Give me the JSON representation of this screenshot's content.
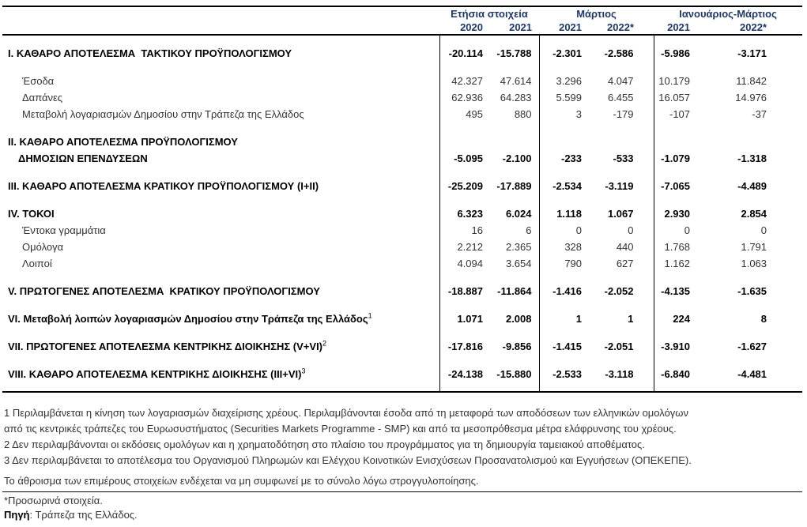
{
  "table": {
    "col_groups": [
      {
        "label": "Ετήσια στοιχεία",
        "years": [
          "2020",
          "2021"
        ]
      },
      {
        "label": "Μάρτιος",
        "years": [
          "2021",
          "2022*"
        ]
      },
      {
        "label": "Ιανουάριος-Μάρτιος",
        "years": [
          "2021",
          "2022*"
        ]
      }
    ],
    "rows": [
      {
        "kind": "section",
        "label": "I. ΚΑΘΑΡΟ ΑΠΟΤΕΛΕΣΜΑ  ΤΑΚΤΙΚΟΥ ΠΡΟΫΠΟΛΟΓΙΣΜΟΥ",
        "values": [
          "-20.114",
          "-15.788",
          "-2.301",
          "-2.586",
          "-5.986",
          "-3.171"
        ]
      },
      {
        "kind": "sub",
        "gap_before": true,
        "label": "Έσοδα",
        "values": [
          "42.327",
          "47.614",
          "3.296",
          "4.047",
          "10.179",
          "11.842"
        ]
      },
      {
        "kind": "sub",
        "label": "Δαπάνες",
        "values": [
          "62.936",
          "64.283",
          "5.599",
          "6.455",
          "16.057",
          "14.976"
        ]
      },
      {
        "kind": "sub",
        "label": "Μεταβολή λογαριασμών Δημοσίου στην Τράπεζα της Ελλάδος",
        "values": [
          "495",
          "880",
          "3",
          "-179",
          "-107",
          "-37"
        ]
      },
      {
        "kind": "section2",
        "gap_before": true,
        "label": "II. ΚΑΘΑΡΟ ΑΠΟΤΕΛΕΣΜΑ ΠΡΟΫΠΟΛΟΓΙΣΜΟΥ",
        "label2": "ΔΗΜΟΣΙΩΝ ΕΠΕΝΔΥΣΕΩΝ",
        "values": [
          "-5.095",
          "-2.100",
          "-233",
          "-533",
          "-1.079",
          "-1.318"
        ]
      },
      {
        "kind": "section",
        "gap_before": true,
        "label": "III. ΚΑΘΑΡΟ ΑΠΟΤΕΛΕΣΜΑ ΚΡΑΤΙΚΟΥ ΠΡΟΫΠΟΛΟΓΙΣΜΟΥ (I+II)",
        "values": [
          "-25.209",
          "-17.889",
          "-2.534",
          "-3.119",
          "-7.065",
          "-4.489"
        ]
      },
      {
        "kind": "section",
        "gap_before": true,
        "label": "IV. ΤΟΚΟΙ",
        "values": [
          "6.323",
          "6.024",
          "1.118",
          "1.067",
          "2.930",
          "2.854"
        ]
      },
      {
        "kind": "sub",
        "label": "Έντοκα γραμμάτια",
        "values": [
          "16",
          "6",
          "0",
          "0",
          "0",
          "0"
        ]
      },
      {
        "kind": "sub",
        "label": "Ομόλογα",
        "values": [
          "2.212",
          "2.365",
          "328",
          "440",
          "1.768",
          "1.791"
        ]
      },
      {
        "kind": "sub",
        "label": "Λοιποί",
        "values": [
          "4.094",
          "3.654",
          "790",
          "627",
          "1.162",
          "1.063"
        ]
      },
      {
        "kind": "section",
        "gap_before": true,
        "label": "V. ΠΡΩΤΟΓΕΝΕΣ ΑΠΟΤΕΛΕΣΜΑ  ΚΡΑΤΙΚΟΥ ΠΡΟΫΠΟΛΟΓΙΣΜΟΥ",
        "values": [
          "-18.887",
          "-11.864",
          "-1.416",
          "-2.052",
          "-4.135",
          "-1.635"
        ]
      },
      {
        "kind": "section",
        "gap_before": true,
        "label": "VI. Μεταβολή λοιπών λογαριασμών Δημοσίου στην Τράπεζα της Ελλάδος",
        "sup": "1",
        "values": [
          "1.071",
          "2.008",
          "1",
          "1",
          "224",
          "8"
        ]
      },
      {
        "kind": "section",
        "gap_before": true,
        "label": "VII. ΠΡΩΤΟΓΕΝΕΣ ΑΠΟΤΕΛΕΣΜΑ ΚΕΝΤΡΙΚΗΣ ΔΙΟΙΚΗΣΗΣ (V+VI)",
        "sup": "2",
        "values": [
          "-17.816",
          "-9.856",
          "-1.415",
          "-2.051",
          "-3.910",
          "-1.627"
        ]
      },
      {
        "kind": "section",
        "gap_before": true,
        "label": "VIII. ΚΑΘΑΡΟ ΑΠΟΤΕΛΕΣΜΑ ΚΕΝΤΡΙΚΗΣ ΔΙΟΙΚΗΣΗΣ (III+VI)",
        "sup": "3",
        "values": [
          "-24.138",
          "-15.880",
          "-2.533",
          "-3.118",
          "-6.840",
          "-4.481"
        ]
      }
    ]
  },
  "notes": {
    "footnote_lines": [
      "1 Περιλαμβάνεται η κίνηση των λογαριασμών διαχείρισης χρέους. Περιλαμβάνονται έσοδα από τη μεταφορά των αποδόσεων των ελληνικών ομολόγων",
      "από τις κεντρικές τράπεζες του Ευρωσυστήματος (Securities Markets Programme - SMP) και από τα μεσοπρόθεσμα μέτρα ελάφρυνσης του χρέους.",
      "2 Δεν περιλαμβάνονται οι εκδόσεις ομολόγων και η χρηματοδότηση στο πλαίσιο του προγράμματος για τη δημιουργία ταμειακού αποθέματος.",
      "3 Δεν περιλαμβάνεται το αποτέλεσμα του Οργανισμού Πληρωμών και Ελέγχου Κοινοτικών Ενισχύσεων Προσανατολισμού και Εγγυήσεων (ΟΠΕΚΕΠΕ)."
    ],
    "rounding": "Το άθροισμα των επιμέρους στοιχείων ενδέχεται να μη συμφωνεί με το σύνολο λόγω στρογγυλοποίησης.",
    "provisional": "*Προσωρινά στοιχεία.",
    "source_label": "Πηγή",
    "source_rest": ": Τράπεζα της Ελλάδος."
  },
  "colors": {
    "header_text": "#1f3864",
    "rule": "#000000"
  }
}
